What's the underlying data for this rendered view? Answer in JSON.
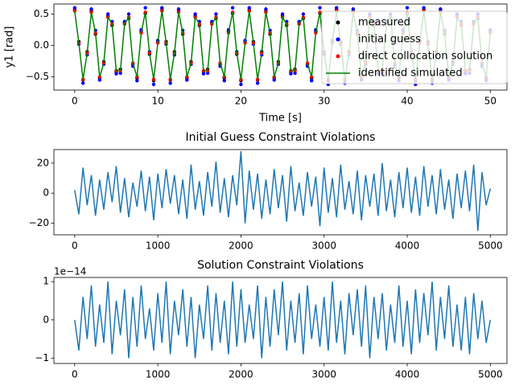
{
  "chart_data": [
    {
      "type": "line",
      "xlabel": "Time [s]",
      "ylabel": "y1 [rad]",
      "legend": "upper right",
      "x": [
        0,
        0.5,
        1,
        1.5,
        2,
        2.5,
        3,
        3.5,
        4,
        4.5,
        5,
        5.5,
        6,
        6.5,
        7,
        7.5,
        8,
        8.5,
        9,
        9.5,
        10,
        10.5,
        11,
        11.5,
        12,
        12.5,
        13,
        13.5,
        14,
        14.5,
        15,
        15.5,
        16,
        16.5,
        17,
        17.5,
        18,
        18.5,
        19,
        19.5,
        20,
        20.5,
        21,
        21.5,
        22,
        22.5,
        23,
        23.5,
        24,
        24.5,
        25,
        25.5,
        26,
        26.5,
        27,
        27.5,
        28,
        28.5,
        29,
        29.5,
        30,
        30.5,
        31,
        31.5,
        32,
        32.5,
        33,
        33.5,
        34,
        34.5,
        35,
        35.5,
        36,
        36.5,
        37,
        37.5,
        38,
        38.5,
        39,
        39.5,
        40,
        40.5,
        41,
        41.5,
        42,
        42.5,
        43,
        43.5,
        44,
        44.5,
        45,
        45.5,
        46,
        46.5,
        47,
        47.5,
        48,
        48.5,
        49,
        49.5,
        50
      ],
      "series": [
        {
          "name": "measured",
          "color": "#000000",
          "marker": "dot",
          "values": [
            0.57,
            0.06,
            -0.55,
            -0.1,
            0.55,
            0.18,
            -0.52,
            -0.26,
            0.47,
            0.32,
            -0.42,
            -0.38,
            0.36,
            0.43,
            -0.3,
            -0.52,
            0.22,
            0.51,
            -0.14,
            -0.56,
            0.06,
            0.57,
            0.06,
            -0.55,
            -0.1,
            0.55,
            0.18,
            -0.52,
            -0.26,
            0.47,
            0.32,
            -0.42,
            -0.38,
            0.36,
            0.43,
            -0.3,
            -0.52,
            0.22,
            0.51,
            -0.14,
            -0.56,
            0.06,
            0.57,
            0.06,
            -0.55,
            -0.1,
            0.55,
            0.18,
            -0.52,
            -0.26,
            0.47,
            0.32,
            -0.42,
            -0.38,
            0.36,
            0.43,
            -0.3,
            -0.52,
            0.22,
            0.51,
            -0.14,
            -0.56,
            0.06,
            0.57,
            0.06,
            -0.55,
            -0.1,
            0.55,
            0.18,
            -0.52,
            -0.26,
            0.47,
            0.32,
            -0.42,
            -0.38,
            0.36,
            0.43,
            -0.3,
            -0.52,
            0.22,
            0.51,
            -0.14,
            -0.56,
            0.06,
            0.57,
            0.06,
            -0.55,
            -0.1,
            0.55,
            0.18,
            -0.52,
            -0.26,
            0.47,
            0.32,
            -0.42,
            -0.38,
            0.36,
            0.43,
            -0.3,
            -0.52,
            0.22
          ]
        },
        {
          "name": "initial guess",
          "color": "#0000ff",
          "marker": "dot",
          "values": [
            0.6,
            0.02,
            -0.6,
            -0.15,
            0.58,
            0.24,
            -0.55,
            -0.3,
            0.5,
            0.38,
            -0.45,
            -0.44,
            0.38,
            0.5,
            -0.33,
            -0.56,
            0.25,
            0.6,
            -0.1,
            -0.62,
            0.08,
            0.6,
            0.02,
            -0.6,
            -0.15,
            0.58,
            0.24,
            -0.55,
            -0.3,
            0.5,
            0.38,
            -0.45,
            -0.44,
            0.38,
            0.5,
            -0.33,
            -0.56,
            0.25,
            0.6,
            -0.1,
            -0.62,
            0.08,
            0.6,
            0.02,
            -0.6,
            -0.15,
            0.58,
            0.24,
            -0.55,
            -0.3,
            0.5,
            0.38,
            -0.45,
            -0.44,
            0.38,
            0.5,
            -0.33,
            -0.56,
            0.25,
            0.6,
            -0.1,
            -0.62,
            0.08,
            0.6,
            0.02,
            -0.6,
            -0.15,
            0.58,
            0.24,
            -0.55,
            -0.3,
            0.5,
            0.38,
            -0.45,
            -0.44,
            0.38,
            0.5,
            -0.33,
            -0.56,
            0.25,
            0.6,
            -0.1,
            -0.62,
            0.08,
            0.6,
            0.02,
            -0.6,
            -0.15,
            0.58,
            0.24,
            -0.55,
            -0.3,
            0.5,
            0.38,
            -0.45,
            -0.44,
            0.38,
            0.5,
            -0.33,
            -0.56,
            0.25
          ]
        },
        {
          "name": "direct collocation solution",
          "color": "#ff0000",
          "marker": "dot",
          "values": [
            0.55,
            0.04,
            -0.54,
            -0.12,
            0.53,
            0.2,
            -0.5,
            -0.28,
            0.45,
            0.34,
            -0.4,
            -0.4,
            0.34,
            0.45,
            -0.28,
            -0.5,
            0.2,
            0.53,
            -0.12,
            -0.54,
            0.04,
            0.55,
            0.04,
            -0.54,
            -0.12,
            0.53,
            0.2,
            -0.5,
            -0.28,
            0.45,
            0.34,
            -0.4,
            -0.4,
            0.34,
            0.45,
            -0.28,
            -0.5,
            0.2,
            0.53,
            -0.12,
            -0.54,
            0.04,
            0.55,
            0.04,
            -0.54,
            -0.12,
            0.53,
            0.2,
            -0.5,
            -0.28,
            0.45,
            0.34,
            -0.4,
            -0.4,
            0.34,
            0.45,
            -0.28,
            -0.5,
            0.2,
            0.53,
            -0.12,
            -0.54,
            0.04,
            0.55,
            0.04,
            -0.54,
            -0.12,
            0.53,
            0.2,
            -0.5,
            -0.28,
            0.45,
            0.34,
            -0.4,
            -0.4,
            0.34,
            0.45,
            -0.28,
            -0.5,
            0.2,
            0.53,
            -0.12,
            -0.54,
            0.04,
            0.55,
            0.04,
            -0.54,
            -0.12,
            0.53,
            0.2,
            -0.5,
            -0.28,
            0.45,
            0.34,
            -0.4,
            -0.4,
            0.34,
            0.45,
            -0.28,
            -0.5,
            0.2
          ]
        },
        {
          "name": "identified simulated",
          "color": "#008000",
          "marker": "line",
          "values": [
            0.55,
            0.04,
            -0.54,
            -0.12,
            0.53,
            0.2,
            -0.5,
            -0.28,
            0.45,
            0.34,
            -0.4,
            -0.4,
            0.34,
            0.45,
            -0.28,
            -0.5,
            0.2,
            0.53,
            -0.12,
            -0.54,
            0.04,
            0.55,
            0.04,
            -0.54,
            -0.12,
            0.53,
            0.2,
            -0.5,
            -0.28,
            0.45,
            0.34,
            -0.4,
            -0.4,
            0.34,
            0.45,
            -0.28,
            -0.5,
            0.2,
            0.53,
            -0.12,
            -0.54,
            0.04,
            0.55,
            0.04,
            -0.54,
            -0.12,
            0.53,
            0.2,
            -0.5,
            -0.28,
            0.45,
            0.34,
            -0.4,
            -0.4,
            0.34,
            0.45,
            -0.28,
            -0.5,
            0.2,
            0.53,
            -0.12,
            -0.54,
            0.04,
            0.55,
            0.04,
            -0.54,
            -0.12,
            0.53,
            0.2,
            -0.5,
            -0.28,
            0.45,
            0.34,
            -0.4,
            -0.4,
            0.34,
            0.45,
            -0.28,
            -0.5,
            0.2,
            0.53,
            -0.12,
            -0.54,
            0.04,
            0.55,
            0.04,
            -0.54,
            -0.12,
            0.53,
            0.2,
            -0.5,
            -0.28,
            0.45,
            0.34,
            -0.4,
            -0.4,
            0.34,
            0.45,
            -0.28,
            -0.5,
            0.2
          ]
        }
      ],
      "xlim": [
        -2.5,
        52
      ],
      "ylim": [
        -0.71,
        0.66
      ],
      "xticks": [
        0,
        10,
        20,
        30,
        40,
        50
      ],
      "yticks": [
        {
          "value": -0.5,
          "label": "−0.5"
        },
        {
          "value": 0,
          "label": "0.0"
        },
        0.5
      ]
    },
    {
      "type": "line",
      "title": "Initial Guess Constraint Violations",
      "x": [
        0,
        50,
        100,
        150,
        200,
        250,
        300,
        350,
        400,
        450,
        500,
        550,
        600,
        650,
        700,
        750,
        800,
        850,
        900,
        950,
        1000,
        1050,
        1100,
        1150,
        1200,
        1250,
        1300,
        1350,
        1400,
        1450,
        1500,
        1550,
        1600,
        1650,
        1700,
        1750,
        1800,
        1850,
        1900,
        1950,
        2000,
        2050,
        2100,
        2150,
        2200,
        2250,
        2300,
        2350,
        2400,
        2450,
        2500,
        2550,
        2600,
        2650,
        2700,
        2750,
        2800,
        2850,
        2900,
        2950,
        3000,
        3050,
        3100,
        3150,
        3200,
        3250,
        3300,
        3350,
        3400,
        3450,
        3500,
        3550,
        3600,
        3650,
        3700,
        3750,
        3800,
        3850,
        3900,
        3950,
        4000,
        4050,
        4100,
        4150,
        4200,
        4250,
        4300,
        4350,
        4400,
        4450,
        4500,
        4550,
        4600,
        4650,
        4700,
        4750,
        4800,
        4850,
        4900,
        4950,
        5000
      ],
      "series": [
        {
          "color": "#1f77b4",
          "marker": "line",
          "values": [
            2,
            -14,
            17,
            -8,
            12,
            -15,
            9,
            -11,
            14,
            -6,
            18,
            -13,
            10,
            -16,
            7,
            -9,
            15,
            -12,
            11,
            -18,
            13,
            -10,
            16,
            -7,
            12,
            -14,
            9,
            -17,
            19,
            -11,
            8,
            -15,
            14,
            -9,
            21,
            -13,
            10,
            -16,
            12,
            -8,
            28,
            -20,
            15,
            -11,
            13,
            -17,
            9,
            -14,
            16,
            -10,
            12,
            -19,
            18,
            -12,
            7,
            -15,
            14,
            -9,
            11,
            -22,
            17,
            -13,
            10,
            -16,
            19,
            -11,
            8,
            -14,
            15,
            -18,
            12,
            -9,
            13,
            -15,
            20,
            -12,
            9,
            -16,
            14,
            -10,
            17,
            -13,
            11,
            -15,
            18,
            -9,
            12,
            -14,
            16,
            -11,
            9,
            -17,
            13,
            -10,
            15,
            -12,
            19,
            -25,
            14,
            -8,
            3
          ]
        }
      ],
      "xlim": [
        -250,
        5200
      ],
      "ylim": [
        -27.7,
        29
      ],
      "xticks": [
        0,
        1000,
        2000,
        3000,
        4000,
        5000
      ],
      "yticks": [
        {
          "value": -20,
          "label": "−20"
        },
        0,
        20
      ]
    },
    {
      "type": "line",
      "title": "Solution Constraint Violations",
      "offset_label": "1e−14",
      "x": [
        0,
        50,
        100,
        150,
        200,
        250,
        300,
        350,
        400,
        450,
        500,
        550,
        600,
        650,
        700,
        750,
        800,
        850,
        900,
        950,
        1000,
        1050,
        1100,
        1150,
        1200,
        1250,
        1300,
        1350,
        1400,
        1450,
        1500,
        1550,
        1600,
        1650,
        1700,
        1750,
        1800,
        1850,
        1900,
        1950,
        2000,
        2050,
        2100,
        2150,
        2200,
        2250,
        2300,
        2350,
        2400,
        2450,
        2500,
        2550,
        2600,
        2650,
        2700,
        2750,
        2800,
        2850,
        2900,
        2950,
        3000,
        3050,
        3100,
        3150,
        3200,
        3250,
        3300,
        3350,
        3400,
        3450,
        3500,
        3550,
        3600,
        3650,
        3700,
        3750,
        3800,
        3850,
        3900,
        3950,
        4000,
        4050,
        4100,
        4150,
        4200,
        4250,
        4300,
        4350,
        4400,
        4450,
        4500,
        4550,
        4600,
        4650,
        4700,
        4750,
        4800,
        4850,
        4900,
        4950,
        5000
      ],
      "series": [
        {
          "color": "#1f77b4",
          "marker": "line",
          "values": [
            0,
            -8e-15,
            6e-15,
            -5e-15,
            9e-15,
            -7e-15,
            4e-15,
            -6e-15,
            1e-14,
            -9e-15,
            5e-15,
            -4e-15,
            8e-15,
            -1e-14,
            6e-15,
            -7e-15,
            9e-15,
            -5e-15,
            3e-15,
            -8e-15,
            7e-15,
            -6e-15,
            1e-14,
            -9e-15,
            5e-15,
            -4e-15,
            8e-15,
            -7e-15,
            6e-15,
            -1e-14,
            4e-15,
            -5e-15,
            9e-15,
            -8e-15,
            7e-15,
            -6e-15,
            5e-15,
            -9e-15,
            1e-14,
            -7e-15,
            8e-15,
            -6e-15,
            4e-15,
            -5e-15,
            9e-15,
            -1e-14,
            6e-15,
            -7e-15,
            8e-15,
            -4e-15,
            1e-14,
            -8e-15,
            5e-15,
            -6e-15,
            7e-15,
            -9e-15,
            9e-15,
            -5e-15,
            4e-15,
            -7e-15,
            6e-15,
            -8e-15,
            1e-14,
            -6e-15,
            5e-15,
            -9e-15,
            7e-15,
            -4e-15,
            8e-15,
            -7e-15,
            9e-15,
            -1e-14,
            6e-15,
            -5e-15,
            7e-15,
            -8e-15,
            4e-15,
            -6e-15,
            9e-15,
            -7e-15,
            5e-15,
            -9e-15,
            8e-15,
            -6e-15,
            7e-15,
            -4e-15,
            1e-14,
            -8e-15,
            6e-15,
            -5e-15,
            9e-15,
            -7e-15,
            4e-15,
            -8e-15,
            6e-15,
            -9e-15,
            7e-15,
            -5e-15,
            5e-15,
            -6e-15,
            0
          ]
        }
      ],
      "xlim": [
        -250,
        5200
      ],
      "ylim": [
        -1.14e-14,
        1.11e-14
      ],
      "xticks": [
        0,
        1000,
        2000,
        3000,
        4000,
        5000
      ],
      "yticks": [
        {
          "value": -1e-14,
          "label": "−1"
        },
        0,
        {
          "value": 1e-14,
          "label": "1"
        }
      ]
    }
  ]
}
